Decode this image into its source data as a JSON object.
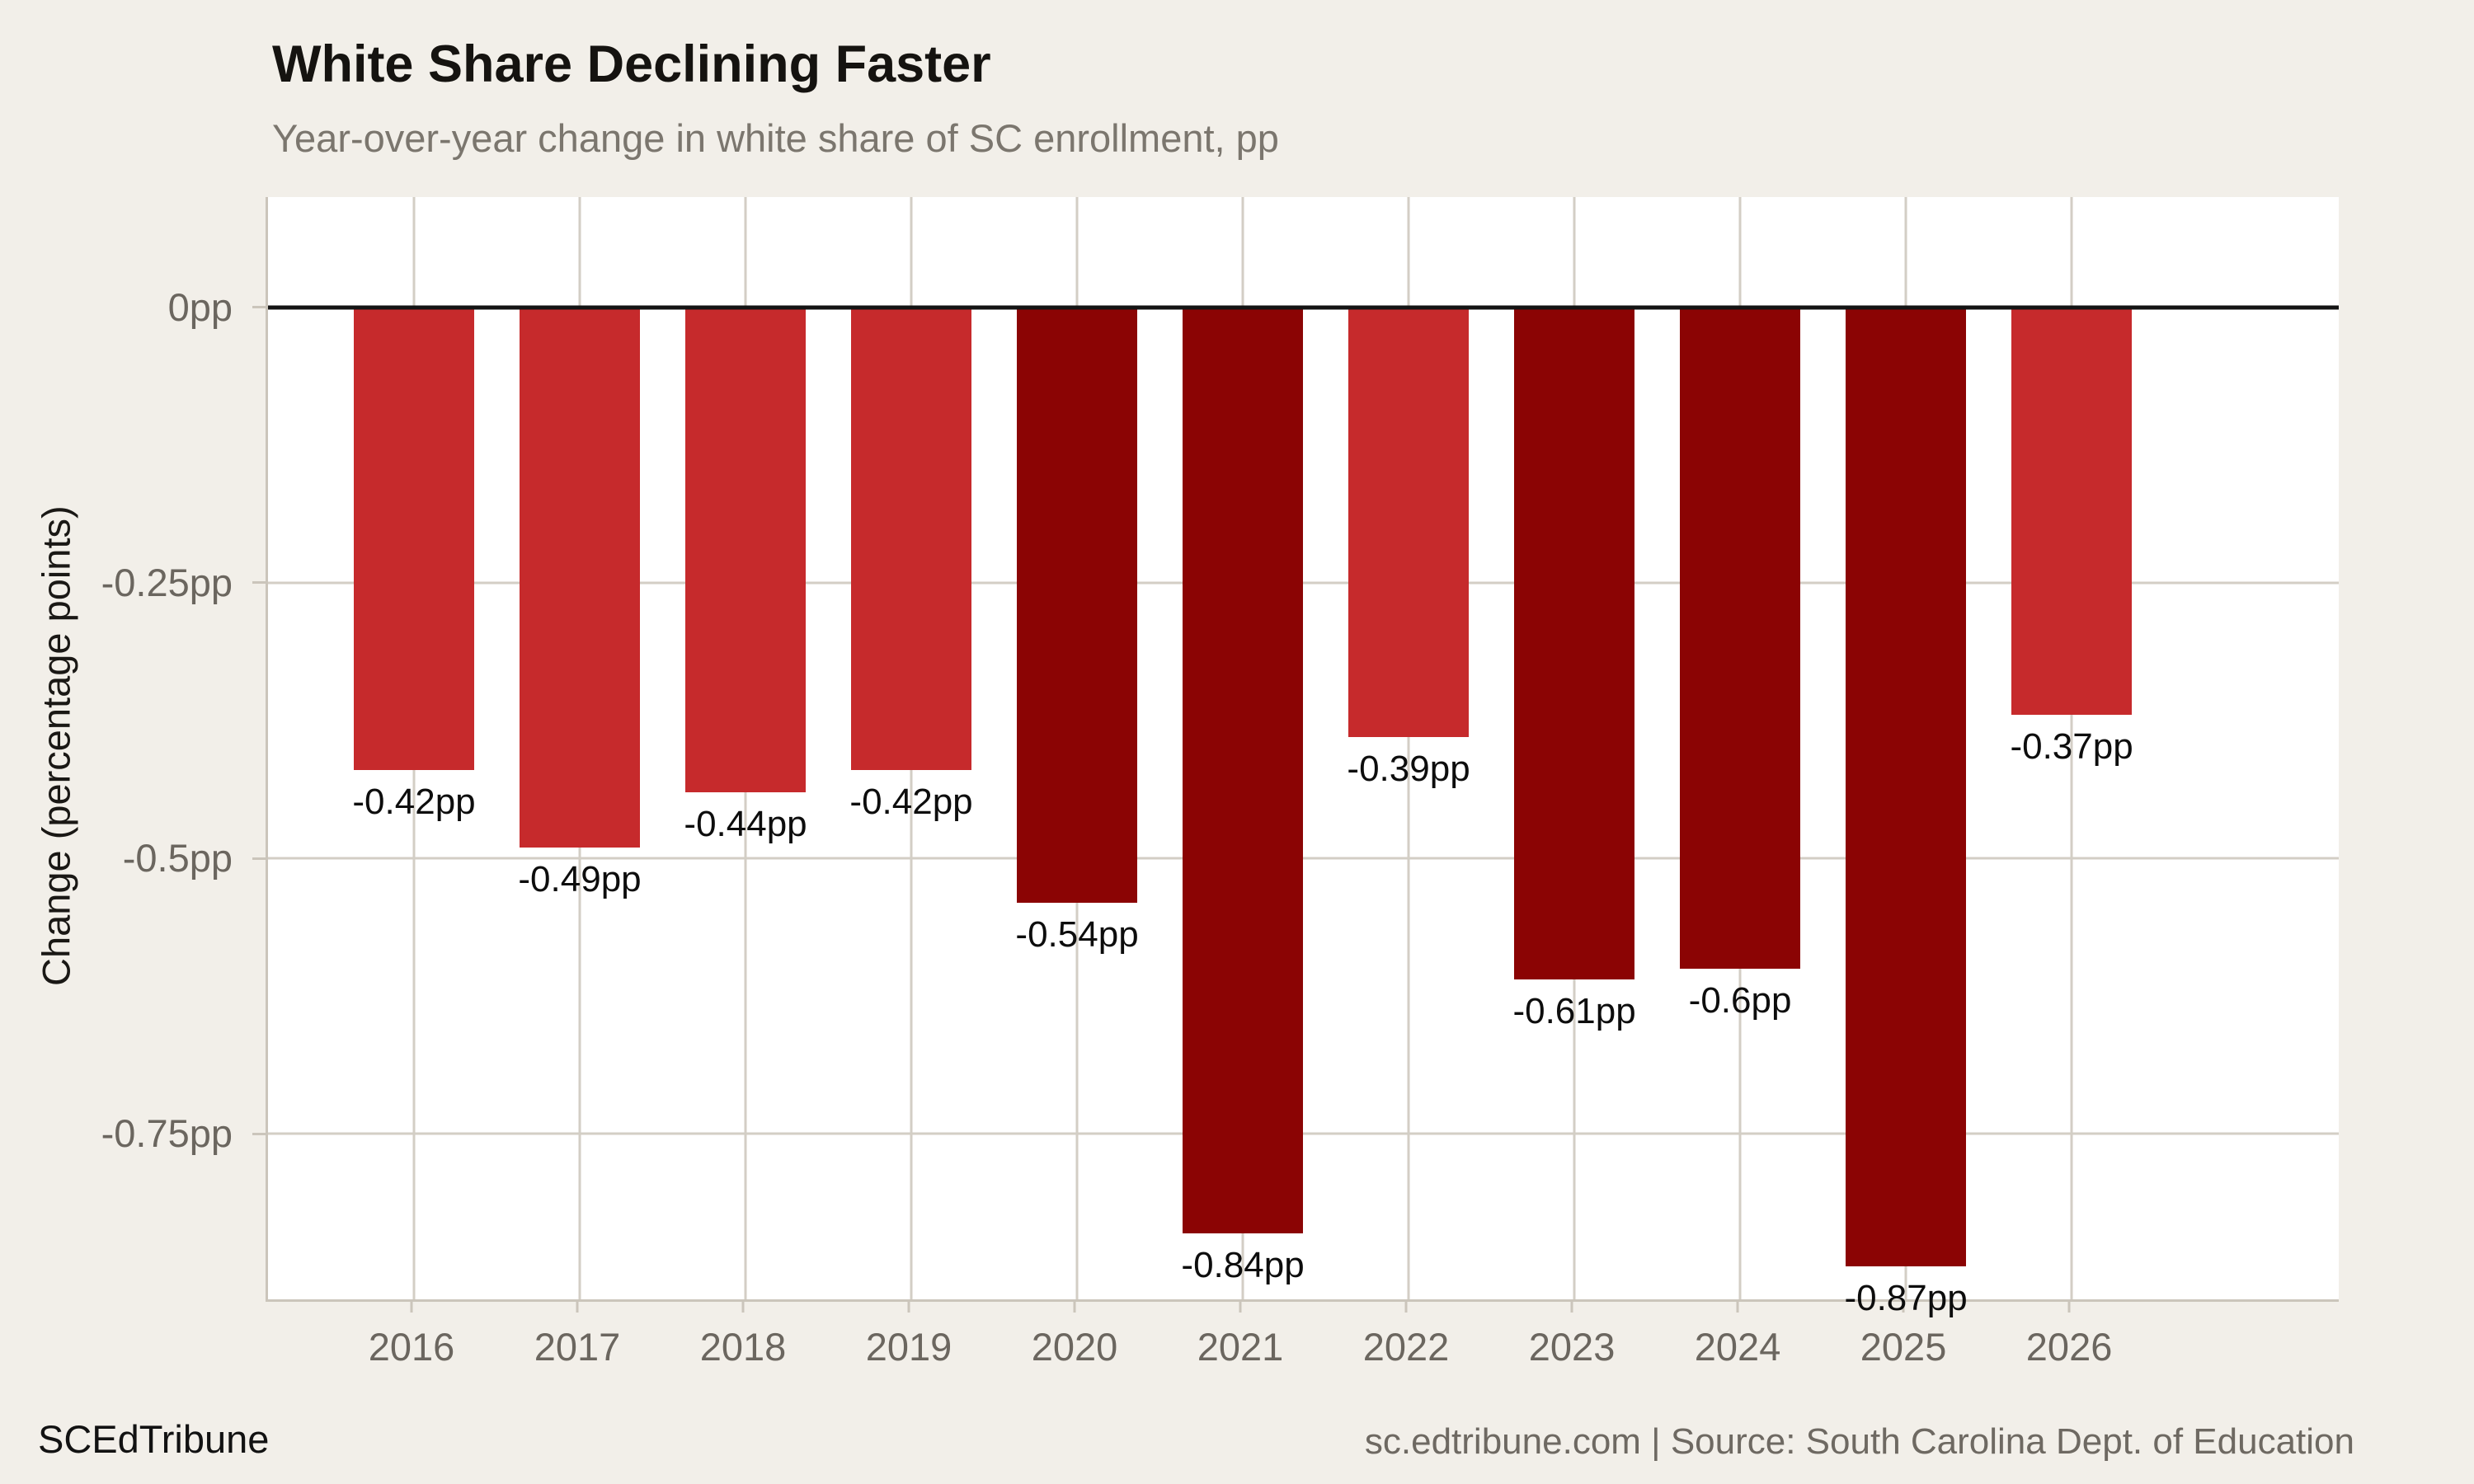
{
  "header": {
    "title": "White Share Declining Faster",
    "subtitle": "Year-over-year change in white share of SC enrollment, pp"
  },
  "y_axis": {
    "label": "Change (percentage points)",
    "ticks": [
      {
        "value": 0,
        "label": "0pp"
      },
      {
        "value": -0.25,
        "label": "-0.25pp"
      },
      {
        "value": -0.5,
        "label": "-0.5pp"
      },
      {
        "value": -0.75,
        "label": "-0.75pp"
      }
    ]
  },
  "footer": {
    "brand": "SCEdTribune",
    "source": "sc.edtribune.com | Source: South Carolina Dept. of Education"
  },
  "colors": {
    "background": "#F2EFE9",
    "panel": "#FFFFFF",
    "bar_light": "#C62A2C",
    "bar_dark": "#8B0404",
    "grid": "#D3CEC5",
    "axis": "#CBC5BB",
    "zero_line": "#141414",
    "tick_label": "#6B665F",
    "subtitle_text": "#7B766E",
    "source_text": "#6E6962",
    "value_label": "#0D0D0D"
  },
  "chart_data": {
    "type": "bar",
    "title": "White Share Declining Faster",
    "subtitle": "Year-over-year change in white share of SC enrollment, pp",
    "xlabel": "",
    "ylabel": "Change (percentage points)",
    "categories": [
      "2016",
      "2017",
      "2018",
      "2019",
      "2020",
      "2021",
      "2022",
      "2023",
      "2024",
      "2025",
      "2026"
    ],
    "values": [
      -0.42,
      -0.49,
      -0.44,
      -0.42,
      -0.54,
      -0.84,
      -0.39,
      -0.61,
      -0.6,
      -0.87,
      -0.37
    ],
    "bar_labels": [
      "-0.42pp",
      "-0.49pp",
      "-0.44pp",
      "-0.42pp",
      "-0.54pp",
      "-0.84pp",
      "-0.39pp",
      "-0.61pp",
      "-0.6pp",
      "-0.87pp",
      "-0.37pp"
    ],
    "bar_shades": [
      "light",
      "light",
      "light",
      "light",
      "dark",
      "dark",
      "light",
      "dark",
      "dark",
      "dark",
      "light"
    ],
    "ylim": [
      -0.9,
      0.1
    ],
    "ytick_values": [
      0,
      -0.25,
      -0.5,
      -0.75
    ],
    "grid": true,
    "legend": false,
    "zero_line": true
  }
}
